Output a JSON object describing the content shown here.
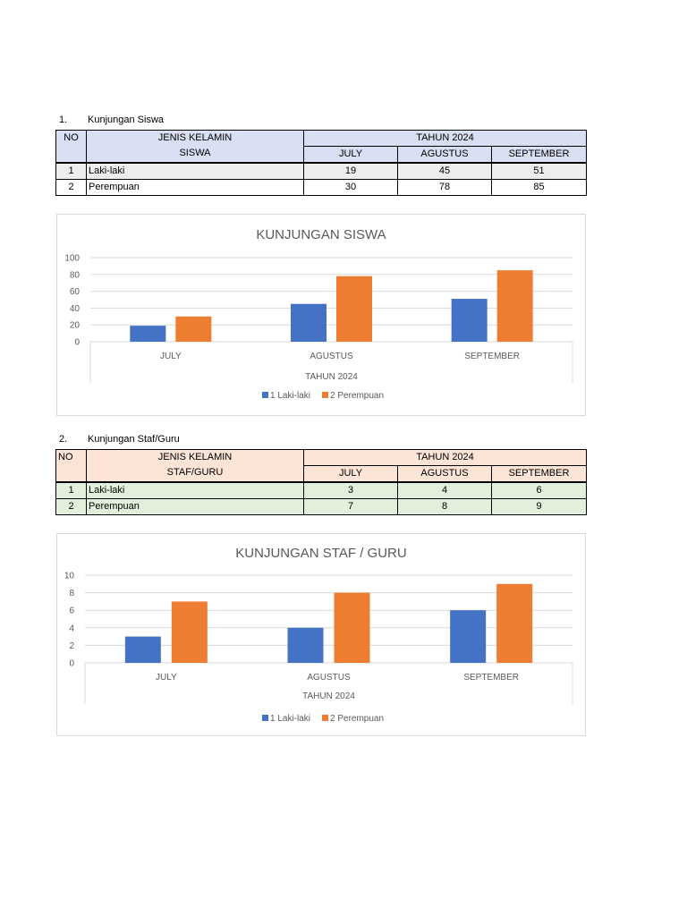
{
  "section1": {
    "number": "1.",
    "title": "Kunjungan Siswa",
    "table": {
      "col_no": "NO",
      "col_name_line1": "JENIS KELAMIN",
      "col_name_line2": "SISWA",
      "col_group": "TAHUN 2024",
      "months": [
        "JULY",
        "AGUSTUS",
        "SEPTEMBER"
      ],
      "rows": [
        {
          "no": "1",
          "name": "Laki-laki",
          "values": [
            "19",
            "45",
            "51"
          ]
        },
        {
          "no": "2",
          "name": "Perempuan",
          "values": [
            "30",
            "78",
            "85"
          ]
        }
      ]
    }
  },
  "section2": {
    "number": "2.",
    "title": "Kunjungan Staf/Guru",
    "table": {
      "col_no": "NO",
      "col_name_line1": "JENIS KELAMIN",
      "col_name_line2": "STAF/GURU",
      "col_group": "TAHUN 2024",
      "months": [
        "JULY",
        "AGUSTUS",
        "SEPTEMBER"
      ],
      "rows": [
        {
          "no": "1",
          "name": "Laki-laki",
          "values": [
            "3",
            "4",
            "6"
          ]
        },
        {
          "no": "2",
          "name": "Perempuan",
          "values": [
            "7",
            "8",
            "9"
          ]
        }
      ]
    }
  },
  "chart_data": [
    {
      "type": "bar",
      "title": "KUNJUNGAN SISWA",
      "xlabel": "TAHUN 2024",
      "ylabel": "",
      "categories": [
        "JULY",
        "AGUSTUS",
        "SEPTEMBER"
      ],
      "series": [
        {
          "name": "1 Laki-laki",
          "values": [
            19,
            45,
            51
          ],
          "color": "#4472c4"
        },
        {
          "name": "2 Perempuan",
          "values": [
            30,
            78,
            85
          ],
          "color": "#ed7d31"
        }
      ],
      "ylim": [
        0,
        100
      ],
      "yticks": [
        0,
        20,
        40,
        60,
        80,
        100
      ],
      "grid": true,
      "legend": "bottom"
    },
    {
      "type": "bar",
      "title": "KUNJUNGAN STAF / GURU",
      "xlabel": "TAHUN 2024",
      "ylabel": "",
      "categories": [
        "JULY",
        "AGUSTUS",
        "SEPTEMBER"
      ],
      "series": [
        {
          "name": "1 Laki-laki",
          "values": [
            3,
            4,
            6
          ],
          "color": "#4472c4"
        },
        {
          "name": "2 Perempuan",
          "values": [
            7,
            8,
            9
          ],
          "color": "#ed7d31"
        }
      ],
      "ylim": [
        0,
        10
      ],
      "yticks": [
        0,
        2,
        4,
        6,
        8,
        10
      ],
      "grid": true,
      "legend": "bottom"
    }
  ]
}
